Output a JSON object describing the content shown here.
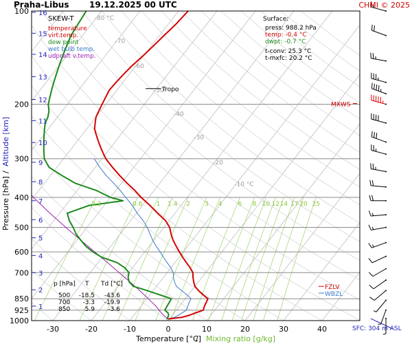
{
  "header": {
    "station": "Praha-Libus",
    "datetime": "19.12.2025 00 UTC",
    "copyright": "CHMI © 2025"
  },
  "legend": {
    "title": "SKEW-T",
    "items": [
      {
        "label": "temperature",
        "color": "#d40000"
      },
      {
        "label": "virt.temp.",
        "color": "#d40000"
      },
      {
        "label": "dew point",
        "color": "#1a8a1a"
      },
      {
        "label": "wet bulb temp.",
        "color": "#3a78c8"
      },
      {
        "label": "udpraft v.temp.",
        "color": "#9b1fb0"
      }
    ]
  },
  "surface_box": {
    "title": "Surface:",
    "press": "press: 988.2 hPa",
    "temp": "temp: -0.4 °C",
    "dwpt": "dwpt: -0.7 °C",
    "tconv": "t-conv: 25.3 °C",
    "tmxfc": "t-mxfc: 20.2 °C"
  },
  "levels_table": {
    "headers": [
      "p [hPa]",
      "T",
      "Td [°C]"
    ],
    "rows": [
      [
        "500",
        "-18.5",
        "-43.6"
      ],
      [
        "700",
        "-3.3",
        "-19.9"
      ],
      [
        "850",
        "5.9",
        "-3.6"
      ]
    ]
  },
  "annotations": {
    "tropo": "Tropo",
    "mxws": "MXWS",
    "fzlv": "FZLV",
    "wbzl": "WBZL",
    "sfc": "SFC: 304 m ASL"
  },
  "colors": {
    "temperature": "#d40000",
    "dewpoint": "#1a8a1a",
    "wetbulb": "#3a78c8",
    "parcel": "#9b1fb0",
    "mixing": "#a8d87a",
    "mixing_label": "#8cc63e",
    "isotherm": "#bdbdbd",
    "isobar": "#8c8c8c",
    "altitude": "#2222bb"
  },
  "chart_data": {
    "type": "line",
    "xlabel": "Temperature [°C]",
    "xlabel_sep": "/",
    "xlabel2": "Mixing ratio [g/kg]",
    "ylabel": "Pressure [hPa]",
    "ylabel_sep": "/",
    "ylabel2": "Altitude [km]",
    "xlim": [
      -35,
      45
    ],
    "ylim": [
      1000,
      100
    ],
    "x_ticks": [
      -30,
      -20,
      -10,
      0,
      10,
      20,
      30,
      40
    ],
    "pressure_ticks": [
      100,
      200,
      300,
      400,
      500,
      600,
      700,
      850,
      925,
      1000
    ],
    "altitude_ticks": [
      {
        "km": "16",
        "p": 101
      },
      {
        "km": "15",
        "p": 118
      },
      {
        "km": "14",
        "p": 138
      },
      {
        "km": "13",
        "p": 163
      },
      {
        "km": "12",
        "p": 193
      },
      {
        "km": "11",
        "p": 226
      },
      {
        "km": "10",
        "p": 266
      },
      {
        "km": "9",
        "p": 308
      },
      {
        "km": "8",
        "p": 356
      },
      {
        "km": "7",
        "p": 410
      },
      {
        "km": "6",
        "p": 472
      },
      {
        "km": "5",
        "p": 540
      },
      {
        "km": "4",
        "p": 616
      },
      {
        "km": "3",
        "p": 700
      },
      {
        "km": "2",
        "p": 795
      },
      {
        "km": "1",
        "p": 898
      }
    ],
    "isotherm_labels": [
      {
        "text": "-80 °C",
        "t": -80,
        "p": 107
      },
      {
        "text": "-70",
        "t": -70,
        "p": 127
      },
      {
        "text": "-60",
        "t": -60,
        "p": 153
      },
      {
        "text": "-50",
        "t": -50,
        "p": 183
      },
      {
        "text": "-40",
        "t": -40,
        "p": 218
      },
      {
        "text": "-30",
        "t": -30,
        "p": 260
      },
      {
        "text": "-20",
        "t": -20,
        "p": 313
      },
      {
        "text": "-10 °C",
        "t": -10,
        "p": 368
      }
    ],
    "mixing_ratio_labels": [
      "0.2",
      "0.6",
      "1",
      "1.4",
      "2",
      "3",
      "4",
      "6",
      "8",
      "10",
      "12",
      "14",
      "17",
      "20",
      "25"
    ],
    "temperature": {
      "name": "temperature",
      "p": [
        988,
        975,
        960,
        945,
        925,
        900,
        875,
        850,
        825,
        800,
        775,
        750,
        725,
        700,
        675,
        650,
        625,
        600,
        575,
        550,
        525,
        500,
        475,
        450,
        425,
        400,
        380,
        360,
        340,
        320,
        300,
        290,
        280,
        270,
        260,
        250,
        240,
        230,
        220,
        210,
        200,
        190,
        180,
        170,
        160,
        150,
        140,
        130,
        120,
        110,
        100
      ],
      "t": [
        -0.4,
        3.0,
        4.5,
        5.5,
        7.0,
        6.5,
        6.2,
        5.9,
        3.8,
        1.8,
        0.0,
        -1.2,
        -2.3,
        -3.3,
        -5.0,
        -7.0,
        -9.0,
        -11.0,
        -13.0,
        -15.0,
        -16.8,
        -18.5,
        -21.0,
        -24.5,
        -28.0,
        -32.0,
        -35.0,
        -38.5,
        -42.0,
        -45.5,
        -49.0,
        -50.5,
        -52.0,
        -53.5,
        -55.0,
        -56.5,
        -58.0,
        -59.0,
        -60.0,
        -60.5,
        -61.0,
        -61.5,
        -62.0,
        -61.8,
        -61.5,
        -61.0,
        -60.2,
        -59.5,
        -58.8,
        -58.0,
        -57.5
      ]
    },
    "dewpoint": {
      "name": "dew point",
      "p": [
        988,
        975,
        960,
        945,
        925,
        900,
        875,
        850,
        825,
        800,
        775,
        750,
        725,
        700,
        675,
        650,
        625,
        600,
        575,
        550,
        525,
        500,
        475,
        450,
        425,
        410,
        400,
        380,
        360,
        340,
        320,
        300,
        290,
        280,
        270,
        260,
        250,
        240,
        230,
        220,
        210,
        200,
        190,
        180,
        170,
        160,
        150,
        140,
        130,
        120,
        110,
        100
      ],
      "t": [
        -0.7,
        -0.8,
        -1.0,
        -1.6,
        -3.0,
        -3.2,
        -3.4,
        -3.6,
        -7.5,
        -11.5,
        -16.0,
        -18.0,
        -19.2,
        -19.9,
        -22.0,
        -25.0,
        -30.0,
        -33.5,
        -36.5,
        -39.0,
        -41.5,
        -43.6,
        -46.0,
        -48.0,
        -44.0,
        -36.0,
        -40.0,
        -45.0,
        -52.0,
        -57.0,
        -62.0,
        -65.0,
        -66.0,
        -67.0,
        -68.0,
        -69.0,
        -70.0,
        -71.0,
        -72.0,
        -72.5,
        -73.5,
        -75.0,
        -76.0,
        -77.0,
        -78.0,
        -79.0,
        -80.0,
        -81.0,
        -82.0,
        -83.0,
        -83.5,
        -84.0
      ]
    },
    "wetbulb": {
      "name": "wet bulb temp.",
      "p": [
        988,
        975,
        960,
        945,
        925,
        900,
        875,
        850,
        825,
        800,
        775,
        750,
        725,
        700,
        675,
        650,
        625,
        600,
        575,
        550,
        525,
        500,
        475,
        450,
        425,
        400,
        380,
        360,
        340,
        320,
        300
      ],
      "t": [
        -0.5,
        1.0,
        1.6,
        2.0,
        2.6,
        2.2,
        1.8,
        1.5,
        -0.4,
        -2.6,
        -4.8,
        -6.2,
        -7.4,
        -8.4,
        -10.0,
        -12.0,
        -14.0,
        -16.0,
        -18.2,
        -20.3,
        -22.3,
        -24.3,
        -26.8,
        -29.8,
        -32.6,
        -36.0,
        -38.8,
        -42.0,
        -45.5,
        -48.8,
        -52.0
      ]
    },
    "parcel": {
      "name": "udpraft v.temp.",
      "p": [
        988,
        960,
        925,
        900,
        850,
        800,
        750,
        700,
        650,
        600,
        550,
        500,
        450,
        400,
        350,
        300,
        250,
        200,
        150,
        100
      ],
      "t": [
        -0.4,
        -2.4,
        -4.5,
        -6.0,
        -9.6,
        -13.5,
        -17.8,
        -22.5,
        -27.5,
        -33.0,
        -39.0,
        -45.5,
        -52.5,
        -60.0,
        -68.0,
        -76.5,
        -86.0,
        -97.0,
        -110.0,
        -128.0
      ]
    },
    "tropopause_p": 178,
    "mxws_p": 199,
    "fzlv_p": 775,
    "wbzl_p": 815,
    "wind_barbs": [
      {
        "p": 100,
        "dir": 285,
        "spd": 15
      },
      {
        "p": 120,
        "dir": 290,
        "spd": 20
      },
      {
        "p": 145,
        "dir": 280,
        "spd": 25
      },
      {
        "p": 170,
        "dir": 285,
        "spd": 35
      },
      {
        "p": 185,
        "dir": 290,
        "spd": 45
      },
      {
        "p": 200,
        "dir": 285,
        "spd": 55
      },
      {
        "p": 230,
        "dir": 285,
        "spd": 40
      },
      {
        "p": 265,
        "dir": 290,
        "spd": 30
      },
      {
        "p": 290,
        "dir": 285,
        "spd": 25
      },
      {
        "p": 330,
        "dir": 280,
        "spd": 25
      },
      {
        "p": 370,
        "dir": 275,
        "spd": 20
      },
      {
        "p": 410,
        "dir": 270,
        "spd": 20
      },
      {
        "p": 455,
        "dir": 265,
        "spd": 15
      },
      {
        "p": 500,
        "dir": 260,
        "spd": 15
      },
      {
        "p": 560,
        "dir": 250,
        "spd": 15
      },
      {
        "p": 620,
        "dir": 245,
        "spd": 10
      },
      {
        "p": 680,
        "dir": 240,
        "spd": 10
      },
      {
        "p": 740,
        "dir": 235,
        "spd": 10
      },
      {
        "p": 800,
        "dir": 230,
        "spd": 10
      },
      {
        "p": 860,
        "dir": 220,
        "spd": 5
      },
      {
        "p": 925,
        "dir": 200,
        "spd": 5
      },
      {
        "p": 985,
        "dir": 180,
        "spd": 5
      }
    ]
  }
}
